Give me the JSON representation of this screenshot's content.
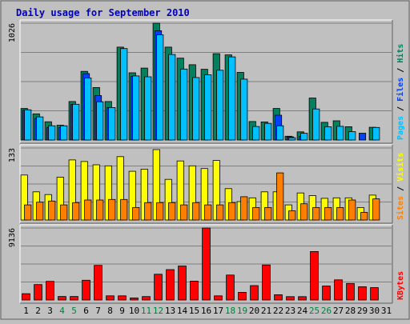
{
  "colors": {
    "background": "#c0c0c0",
    "plot_background": "#c0c0c0",
    "frame_dark": "#606060",
    "grid": "#808080",
    "title": "#0000c0",
    "hits": "#00805c",
    "files": "#0040ff",
    "pages": "#00c0ff",
    "visits": "#ffff00",
    "sites": "#ff8000",
    "kbytes": "#ff0000",
    "day_label": "#000000",
    "weekend_label": "#008040"
  },
  "chart_data": {
    "type": "bar",
    "title": "Daily usage for September 2010",
    "categories": [
      "1",
      "2",
      "3",
      "4",
      "5",
      "6",
      "7",
      "8",
      "9",
      "10",
      "11",
      "12",
      "13",
      "14",
      "15",
      "16",
      "17",
      "18",
      "19",
      "20",
      "21",
      "22",
      "23",
      "24",
      "25",
      "26",
      "27",
      "28",
      "29",
      "30",
      "31"
    ],
    "weekend_days": [
      "4",
      "5",
      "11",
      "12",
      "18",
      "19",
      "25",
      "26"
    ],
    "panels": [
      {
        "name": "hits-files-pages",
        "ymax_label": "1026",
        "ymax": 1026,
        "legend": [
          {
            "text": "Hits",
            "color": "#00805c"
          },
          {
            "text": "Files",
            "color": "#0040ff"
          },
          {
            "text": "Pages",
            "color": "#00c0ff"
          }
        ],
        "series": [
          {
            "name": "Hits",
            "values": [
              277,
              230,
              160,
              130,
              338,
              603,
              461,
              338,
              816,
              590,
              632,
              1026,
              816,
              719,
              661,
              621,
              758,
              748,
              594,
              162,
              159,
              277,
              33,
              72,
              369,
              155,
              169,
              117,
              0,
              112,
              0
            ]
          },
          {
            "name": "Files",
            "values": [
              265,
              190,
              110,
              110,
              312,
              583,
              390,
              284,
              0,
              560,
              0,
              960,
              0,
              0,
              0,
              0,
              0,
              0,
              0,
              0,
              0,
              218,
              28,
              30,
              0,
              0,
              0,
              0,
              60,
              0,
              0
            ]
          },
          {
            "name": "Pages",
            "values": [
              265,
              203,
              125,
              125,
              314,
              545,
              336,
              285,
              803,
              563,
              555,
              924,
              751,
              623,
              549,
              573,
              613,
              730,
              535,
              119,
              146,
              125,
              20,
              59,
              273,
              117,
              120,
              73,
              0,
              110,
              0
            ]
          }
        ]
      },
      {
        "name": "visits-sites",
        "ymax_label": "133",
        "ymax": 133,
        "legend": [
          {
            "text": "Visits",
            "color": "#ffff00"
          },
          {
            "text": "Sites",
            "color": "#ff8000"
          }
        ],
        "series": [
          {
            "name": "Visits",
            "values": [
              83,
              52,
              47,
              79,
              111,
              108,
              102,
              100,
              117,
              90,
              94,
              130,
              75,
              109,
              100,
              95,
              110,
              58,
              34,
              41,
              52,
              52,
              28,
              50,
              45,
              40,
              41,
              41,
              23,
              46,
              0
            ]
          },
          {
            "name": "Sites",
            "values": [
              28,
              33,
              35,
              28,
              32,
              37,
              37,
              38,
              38,
              23,
              32,
              32,
              32,
              28,
              32,
              28,
              28,
              32,
              43,
              23,
              23,
              87,
              17,
              30,
              23,
              23,
              23,
              37,
              14,
              39,
              0
            ]
          }
        ]
      },
      {
        "name": "kbytes",
        "ymax_label": "9136",
        "ymax": 9136,
        "legend": [
          {
            "text": "KBytes",
            "color": "#ff0000"
          }
        ],
        "series": [
          {
            "name": "KBytes",
            "values": [
              800,
              1960,
              2370,
              450,
              450,
              2510,
              4400,
              530,
              530,
              260,
              440,
              3270,
              3860,
              4310,
              2400,
              9136,
              530,
              3170,
              970,
              1830,
              4450,
              670,
              430,
              430,
              6150,
              1780,
              2560,
              2100,
              1690,
              1570,
              0
            ]
          }
        ]
      }
    ]
  }
}
